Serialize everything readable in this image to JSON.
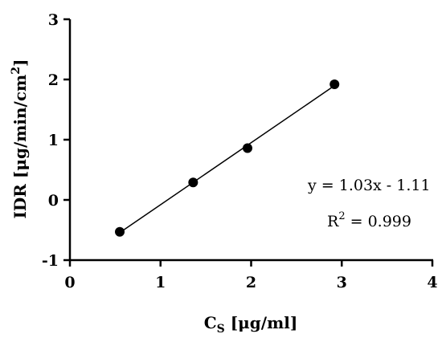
{
  "chart_data": {
    "type": "scatter",
    "xlabel": {
      "main": "C",
      "sub": "S",
      "rest": " [μg/ml]"
    },
    "ylabel": {
      "main": "IDR [μg/min/cm",
      "sup": "2",
      "rest": "]"
    },
    "xlim": [
      0,
      4
    ],
    "ylim": [
      -1,
      3
    ],
    "xticks": [
      0,
      1,
      2,
      3,
      4
    ],
    "yticks": [
      -1,
      0,
      1,
      2,
      3
    ],
    "series": [
      {
        "points": [
          {
            "x": 0.55,
            "y": -0.53
          },
          {
            "x": 1.36,
            "y": 0.29
          },
          {
            "x": 1.96,
            "y": 0.86
          },
          {
            "x": 2.92,
            "y": 1.92
          }
        ]
      }
    ],
    "fit_line": {
      "slope": 1.03,
      "intercept": -1.11,
      "x_from": 0.55,
      "x_to": 2.92
    },
    "annotations": {
      "equation": "y = 1.03x - 1.11",
      "r2_base": "R",
      "r2_sup": "2",
      "r2_rest": " = 0.999"
    },
    "grid": false,
    "legend": "none"
  }
}
